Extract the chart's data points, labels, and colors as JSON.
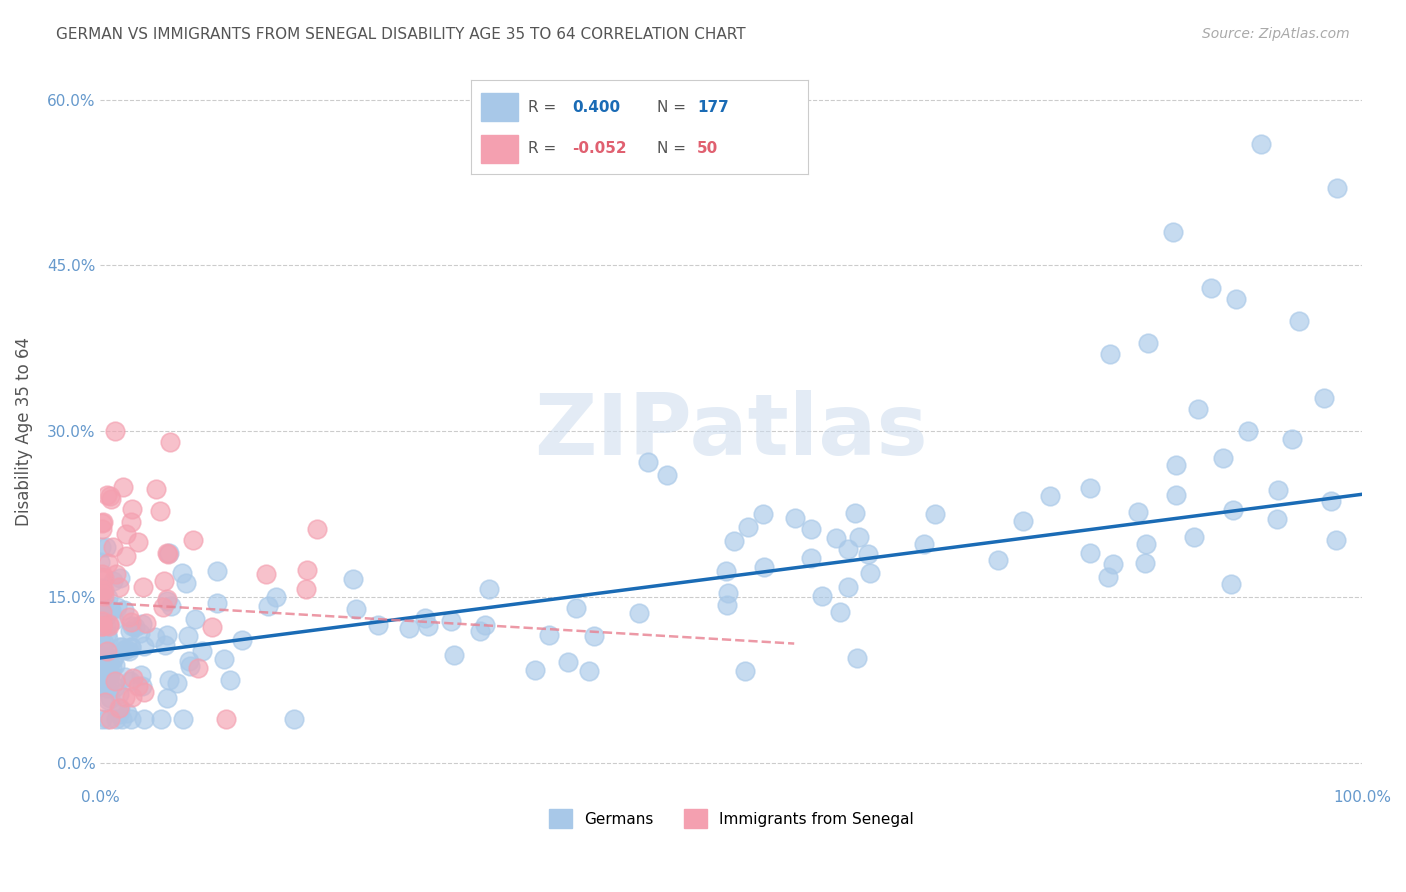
{
  "title": "GERMAN VS IMMIGRANTS FROM SENEGAL DISABILITY AGE 35 TO 64 CORRELATION CHART",
  "source": "Source: ZipAtlas.com",
  "xlabel": "",
  "ylabel": "Disability Age 35 to 64",
  "xlim": [
    0.0,
    1.0
  ],
  "ylim": [
    -0.02,
    0.62
  ],
  "yticks": [
    0.0,
    0.15,
    0.3,
    0.45,
    0.6
  ],
  "ytick_labels": [
    "0.0%",
    "15.0%",
    "30.0%",
    "45.0%",
    "60.0%"
  ],
  "xticks": [
    0.0,
    0.1,
    0.2,
    0.3,
    0.4,
    0.5,
    0.6,
    0.7,
    0.8,
    0.9,
    1.0
  ],
  "xtick_labels": [
    "0.0%",
    "",
    "",
    "",
    "",
    "",
    "",
    "",
    "",
    "",
    "100.0%"
  ],
  "german_color": "#a8c8e8",
  "senegal_color": "#f4a0b0",
  "german_line_color": "#1a6bb5",
  "senegal_line_color": "#e88090",
  "background_color": "#ffffff",
  "grid_color": "#cccccc",
  "R_german": 0.4,
  "N_german": 177,
  "R_senegal": -0.052,
  "N_senegal": 50,
  "watermark": "ZIPatlas",
  "legend_labels": [
    "Germans",
    "Immigrants from Senegal"
  ],
  "title_color": "#555555",
  "axis_color": "#6699cc",
  "tick_color": "#6699cc",
  "german_line_y_start": 0.095,
  "german_line_y_end": 0.243,
  "senegal_line_y_start": 0.145,
  "senegal_line_y_end": 0.108,
  "senegal_line_x_end": 0.55
}
